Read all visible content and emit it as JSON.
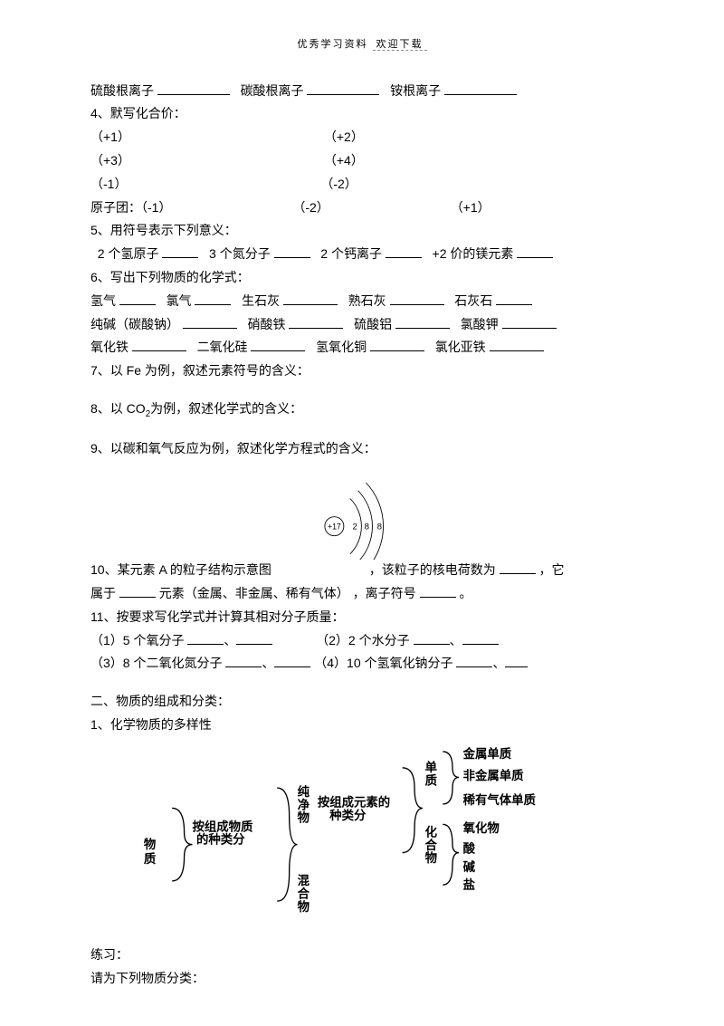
{
  "header": {
    "left": "优秀学习资料",
    "right": "欢迎下载"
  },
  "q_ions": {
    "a": "硫酸根离子",
    "b": "碳酸根离子",
    "c": "铵根离子"
  },
  "q4": {
    "title": "4、默写化合价：",
    "r1a": "（+1）",
    "r1b": "（+2）",
    "r2a": "（+3）",
    "r2b": "（+4）",
    "r3a": "（-1）",
    "r3b": "（-2）",
    "r4": "原子团：（-1）",
    "r4b": "（-2）",
    "r4c": "（+1）"
  },
  "q5": {
    "title": "5、用符号表示下列意义：",
    "a": "2 个氢原子",
    "b": "3 个氮分子",
    "c": "2 个钙离子",
    "d": "+2 价的镁元素"
  },
  "q6": {
    "title": "6、写出下列物质的化学式：",
    "r1": {
      "a": "氢气",
      "b": "氯气",
      "c": "生石灰",
      "d": "熟石灰",
      "e": "石灰石"
    },
    "r2": {
      "a": "纯碱（碳酸钠）",
      "b": "硝酸铁",
      "c": "硫酸铝",
      "d": "氯酸钾"
    },
    "r3": {
      "a": "氧化铁",
      "b": "二氧化硅",
      "c": "氢氧化铜",
      "d": "氯化亚铁"
    }
  },
  "q7": "7、以 Fe 为例，叙述元素符号的含义：",
  "q8a": "8、以 CO",
  "q8b": "为例，叙述化学式的含义：",
  "q9": "9、以碳和氧气反应为例，叙述化学方程式的含义：",
  "q10": {
    "a": "10、某元素 A 的粒子结构示意图",
    "b": "，该粒子的核电荷数为",
    "c": "，它",
    "d": "属于",
    "e": "元素（金属、非金属、稀有气体） ，离子符号",
    "f": "。"
  },
  "q11": {
    "title": "11、按要求写化学式并计算其相对分子质量：",
    "a": "（1）5 个氧分子",
    "b": "（2）2 个水分子",
    "c": "（3）8 个二氧化氮分子",
    "d": "（4）10 个氢氧化钠分子"
  },
  "sec2": {
    "title": "二、物质的组成和分类：",
    "sub1": "1、化学物质的多样性"
  },
  "tree": {
    "wuzhi": "物质",
    "bylabel1": "按组成物质的种类分",
    "chunjing": "纯净物",
    "hunhe": "混合物",
    "bylabel2": "按组成元素的种类分",
    "danzhi": "单质",
    "huahewu": "化合物",
    "jinshu": "金属单质",
    "feijinshu": "非金属单质",
    "xiyou": "稀有气体单质",
    "yanghuawu": "氧化物",
    "suan": "酸",
    "jian": "碱",
    "yan": "盐"
  },
  "practice": {
    "a": "练习：",
    "b": "请为下列物质分类："
  },
  "atom": {
    "nucleus": "+17",
    "s1": "2",
    "s2": "8",
    "s3": "8"
  }
}
